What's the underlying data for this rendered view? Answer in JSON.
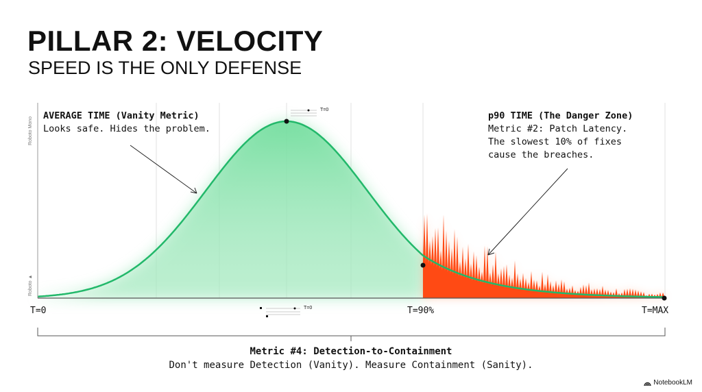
{
  "title": "PILLAR 2: VELOCITY",
  "subtitle": "SPEED IS THE ONLY DEFENSE",
  "axis_labels": {
    "top": "Roboto Mono",
    "bottom": "Roboto ▲"
  },
  "left_annotation": {
    "heading": "AVERAGE TIME (Vanity Metric)",
    "text": "Looks safe. Hides the problem."
  },
  "right_annotation": {
    "heading": "p90 TIME (The Danger Zone)",
    "lines": [
      "Metric #2: Patch Latency.",
      "The slowest 10% of fixes",
      "cause the breaches."
    ]
  },
  "peak_label": "T=0",
  "mini_label": "T=0",
  "ticks": [
    "T=0",
    "T=90%",
    "T=MAX"
  ],
  "bottom": {
    "heading": "Metric #4: Detection-to-Containment",
    "text": "Don't measure Detection (Vanity). Measure Containment (Sanity)."
  },
  "logo": "NotebookLM",
  "colors": {
    "green": "#22b86a",
    "green_fill": "#7fe0a6",
    "orange": "#ff4a14",
    "axis": "#555555"
  }
}
